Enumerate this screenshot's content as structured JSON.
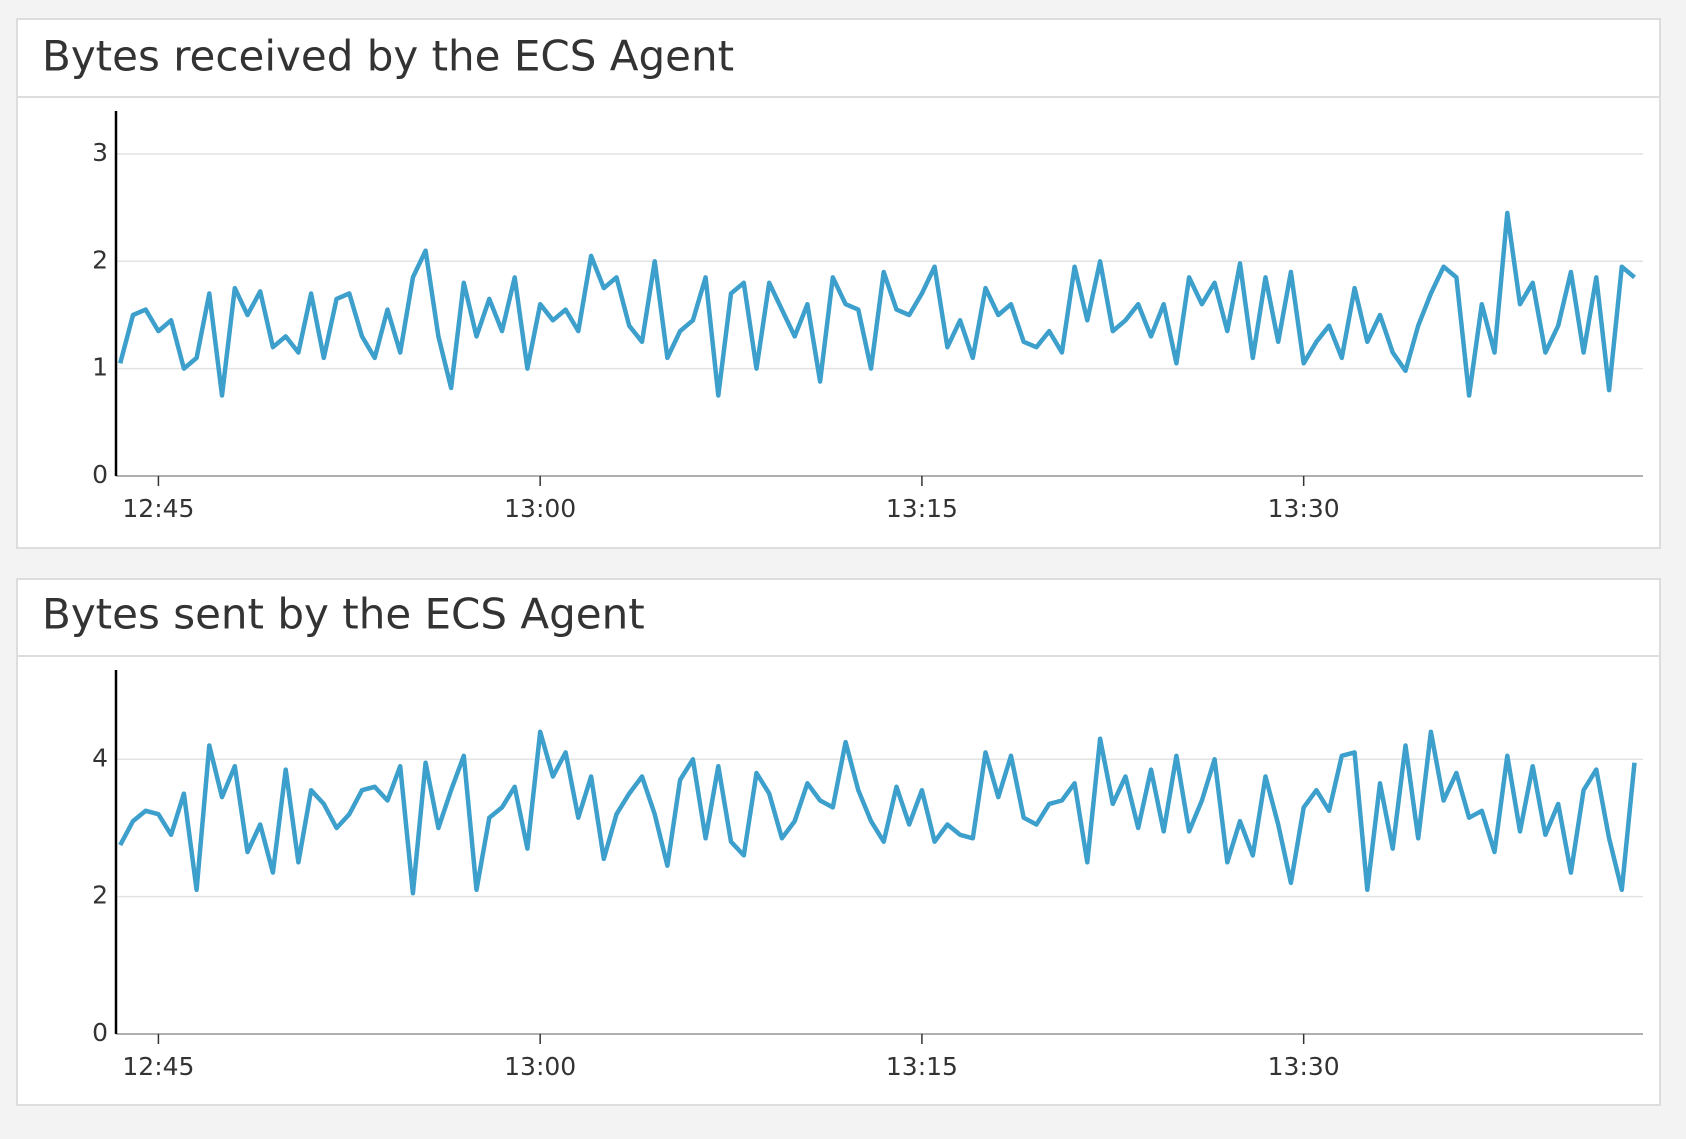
{
  "chart_data": [
    {
      "type": "line",
      "title": "Bytes received by the ECS Agent",
      "color": "#3d9fcb",
      "x": [
        "12:43:30",
        "12:44:00",
        "12:44:30",
        "12:45:00",
        "12:45:30",
        "12:46:00",
        "12:46:30",
        "12:47:00",
        "12:47:30",
        "12:48:00",
        "12:48:30",
        "12:49:00",
        "12:49:30",
        "12:50:00",
        "12:50:30",
        "12:51:00",
        "12:51:30",
        "12:52:00",
        "12:52:30",
        "12:53:00",
        "12:53:30",
        "12:54:00",
        "12:54:30",
        "12:55:00",
        "12:55:30",
        "12:56:00",
        "12:56:30",
        "12:57:00",
        "12:57:30",
        "12:58:00",
        "12:58:30",
        "12:59:00",
        "12:59:30",
        "13:00:00",
        "13:00:30",
        "13:01:00",
        "13:01:30",
        "13:02:00",
        "13:02:30",
        "13:03:00",
        "13:03:30",
        "13:04:00",
        "13:04:30",
        "13:05:00",
        "13:05:30",
        "13:06:00",
        "13:06:30",
        "13:07:00",
        "13:07:30",
        "13:08:00",
        "13:08:30",
        "13:09:00",
        "13:09:30",
        "13:10:00",
        "13:10:30",
        "13:11:00",
        "13:11:30",
        "13:12:00",
        "13:12:30",
        "13:13:00",
        "13:13:30",
        "13:14:00",
        "13:14:30",
        "13:15:00",
        "13:15:30",
        "13:16:00",
        "13:16:30",
        "13:17:00",
        "13:17:30",
        "13:18:00",
        "13:18:30",
        "13:19:00",
        "13:19:30",
        "13:20:00",
        "13:20:30",
        "13:21:00",
        "13:21:30",
        "13:22:00",
        "13:22:30",
        "13:23:00",
        "13:23:30",
        "13:24:00",
        "13:24:30",
        "13:25:00",
        "13:25:30",
        "13:26:00",
        "13:26:30",
        "13:27:00",
        "13:27:30",
        "13:28:00",
        "13:28:30",
        "13:29:00",
        "13:29:30",
        "13:30:00",
        "13:30:30",
        "13:31:00",
        "13:31:30",
        "13:32:00",
        "13:32:30",
        "13:33:00",
        "13:33:30",
        "13:34:00",
        "13:34:30",
        "13:35:00",
        "13:35:30",
        "13:36:00",
        "13:36:30",
        "13:37:00",
        "13:37:30",
        "13:38:00",
        "13:38:30",
        "13:39:00",
        "13:39:30",
        "13:40:00",
        "13:40:30",
        "13:41:00",
        "13:41:30",
        "13:42:00",
        "13:42:30",
        "13:43:00"
      ],
      "values": [
        1.05,
        1.5,
        1.55,
        1.35,
        1.45,
        1.0,
        1.1,
        1.7,
        0.75,
        1.75,
        1.5,
        1.72,
        1.2,
        1.3,
        1.15,
        1.7,
        1.1,
        1.65,
        1.7,
        1.3,
        1.1,
        1.55,
        1.15,
        1.85,
        2.1,
        1.3,
        0.82,
        1.8,
        1.3,
        1.65,
        1.35,
        1.85,
        1.0,
        1.6,
        1.45,
        1.55,
        1.35,
        2.05,
        1.75,
        1.85,
        1.4,
        1.25,
        2.0,
        1.1,
        1.35,
        1.45,
        1.85,
        0.75,
        1.7,
        1.8,
        1.0,
        1.8,
        1.55,
        1.3,
        1.6,
        0.88,
        1.85,
        1.6,
        1.55,
        1.0,
        1.9,
        1.55,
        1.5,
        1.7,
        1.95,
        1.2,
        1.45,
        1.1,
        1.75,
        1.5,
        1.6,
        1.25,
        1.2,
        1.35,
        1.15,
        1.95,
        1.45,
        2.0,
        1.35,
        1.45,
        1.6,
        1.3,
        1.6,
        1.05,
        1.85,
        1.6,
        1.8,
        1.35,
        1.98,
        1.1,
        1.85,
        1.25,
        1.9,
        1.05,
        1.25,
        1.4,
        1.1,
        1.75,
        1.25,
        1.5,
        1.15,
        0.98,
        1.4,
        1.7,
        1.95,
        1.85,
        0.75,
        1.6,
        1.15,
        2.45,
        1.6,
        1.8,
        1.15,
        1.4,
        1.9,
        1.15,
        1.85,
        0.8,
        1.95,
        1.85
      ],
      "xlim": [
        "12:43:20",
        "13:43:20"
      ],
      "xticks": [
        "12:45",
        "13:00",
        "13:15",
        "13:30"
      ],
      "ylim": [
        0,
        3.4
      ],
      "yticks": [
        0,
        1,
        2,
        3
      ],
      "grid": true
    },
    {
      "type": "line",
      "title": "Bytes sent by the ECS Agent",
      "color": "#3d9fcb",
      "x": [
        "12:43:30",
        "12:44:00",
        "12:44:30",
        "12:45:00",
        "12:45:30",
        "12:46:00",
        "12:46:30",
        "12:47:00",
        "12:47:30",
        "12:48:00",
        "12:48:30",
        "12:49:00",
        "12:49:30",
        "12:50:00",
        "12:50:30",
        "12:51:00",
        "12:51:30",
        "12:52:00",
        "12:52:30",
        "12:53:00",
        "12:53:30",
        "12:54:00",
        "12:54:30",
        "12:55:00",
        "12:55:30",
        "12:56:00",
        "12:56:30",
        "12:57:00",
        "12:57:30",
        "12:58:00",
        "12:58:30",
        "12:59:00",
        "12:59:30",
        "13:00:00",
        "13:00:30",
        "13:01:00",
        "13:01:30",
        "13:02:00",
        "13:02:30",
        "13:03:00",
        "13:03:30",
        "13:04:00",
        "13:04:30",
        "13:05:00",
        "13:05:30",
        "13:06:00",
        "13:06:30",
        "13:07:00",
        "13:07:30",
        "13:08:00",
        "13:08:30",
        "13:09:00",
        "13:09:30",
        "13:10:00",
        "13:10:30",
        "13:11:00",
        "13:11:30",
        "13:12:00",
        "13:12:30",
        "13:13:00",
        "13:13:30",
        "13:14:00",
        "13:14:30",
        "13:15:00",
        "13:15:30",
        "13:16:00",
        "13:16:30",
        "13:17:00",
        "13:17:30",
        "13:18:00",
        "13:18:30",
        "13:19:00",
        "13:19:30",
        "13:20:00",
        "13:20:30",
        "13:21:00",
        "13:21:30",
        "13:22:00",
        "13:22:30",
        "13:23:00",
        "13:23:30",
        "13:24:00",
        "13:24:30",
        "13:25:00",
        "13:25:30",
        "13:26:00",
        "13:26:30",
        "13:27:00",
        "13:27:30",
        "13:28:00",
        "13:28:30",
        "13:29:00",
        "13:29:30",
        "13:30:00",
        "13:30:30",
        "13:31:00",
        "13:31:30",
        "13:32:00",
        "13:32:30",
        "13:33:00",
        "13:33:30",
        "13:34:00",
        "13:34:30",
        "13:35:00",
        "13:35:30",
        "13:36:00",
        "13:36:30",
        "13:37:00",
        "13:37:30",
        "13:38:00",
        "13:38:30",
        "13:39:00",
        "13:39:30",
        "13:40:00",
        "13:40:30",
        "13:41:00",
        "13:41:30",
        "13:42:00",
        "13:42:30",
        "13:43:00"
      ],
      "values": [
        2.75,
        3.1,
        3.25,
        3.2,
        2.9,
        3.5,
        2.1,
        4.2,
        3.45,
        3.9,
        2.65,
        3.05,
        2.35,
        3.85,
        2.5,
        3.55,
        3.35,
        3.0,
        3.2,
        3.55,
        3.6,
        3.4,
        3.9,
        2.05,
        3.95,
        3.0,
        3.55,
        4.05,
        2.1,
        3.15,
        3.3,
        3.6,
        2.7,
        4.4,
        3.75,
        4.1,
        3.15,
        3.75,
        2.55,
        3.2,
        3.5,
        3.75,
        3.2,
        2.45,
        3.7,
        4.0,
        2.85,
        3.9,
        2.8,
        2.6,
        3.8,
        3.5,
        2.85,
        3.1,
        3.65,
        3.4,
        3.3,
        4.25,
        3.55,
        3.1,
        2.8,
        3.6,
        3.05,
        3.55,
        2.8,
        3.05,
        2.9,
        2.85,
        4.1,
        3.45,
        4.05,
        3.15,
        3.05,
        3.35,
        3.4,
        3.65,
        2.5,
        4.3,
        3.35,
        3.75,
        3.0,
        3.85,
        2.95,
        4.05,
        2.95,
        3.4,
        4.0,
        2.5,
        3.1,
        2.6,
        3.75,
        3.05,
        2.2,
        3.3,
        3.55,
        3.25,
        4.05,
        4.1,
        2.1,
        3.65,
        2.7,
        4.2,
        2.85,
        4.4,
        3.4,
        3.8,
        3.15,
        3.25,
        2.65,
        4.05,
        2.95,
        3.9,
        2.9,
        3.35,
        2.35,
        3.55,
        3.85,
        2.85,
        2.1,
        3.95
      ],
      "xlim": [
        "12:43:20",
        "13:43:20"
      ],
      "xticks": [
        "12:45",
        "13:00",
        "13:15",
        "13:30"
      ],
      "ylim": [
        0,
        5.3
      ],
      "yticks": [
        0,
        2,
        4
      ],
      "grid": true
    }
  ]
}
